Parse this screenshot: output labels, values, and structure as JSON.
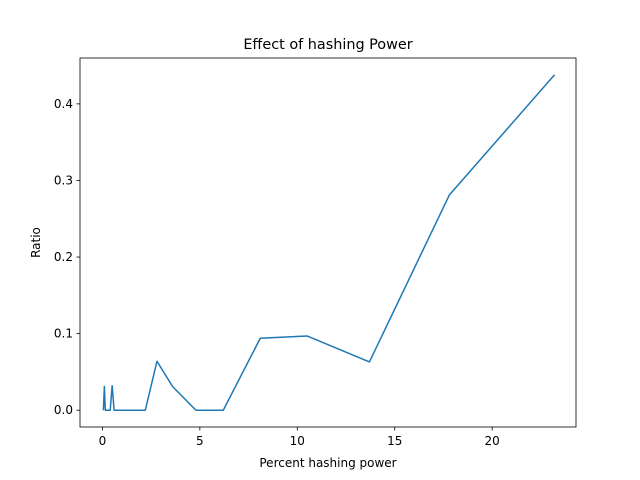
{
  "chart_data": {
    "type": "line",
    "title": "Effect of hashing Power",
    "xlabel": "Percent hashing power",
    "ylabel": "Ratio",
    "xlim": [
      -1.15,
      24.3
    ],
    "ylim": [
      -0.0219,
      0.4599
    ],
    "xticks": [
      0,
      5,
      10,
      15,
      20
    ],
    "yticks": [
      0.0,
      0.1,
      0.2,
      0.3,
      0.4
    ],
    "xtick_labels": [
      "0",
      "5",
      "10",
      "15",
      "20"
    ],
    "ytick_labels": [
      "0.0",
      "0.1",
      "0.2",
      "0.3",
      "0.4"
    ],
    "grid": false,
    "series": [
      {
        "color": "#1f77b4",
        "x": [
          0.05,
          0.1,
          0.15,
          0.4,
          0.5,
          0.6,
          2.2,
          2.8,
          3.6,
          4.8,
          6.2,
          8.1,
          10.5,
          13.7,
          17.8,
          23.2
        ],
        "y": [
          0.0,
          0.031,
          0.0,
          0.0,
          0.032,
          0.0,
          0.0,
          0.064,
          0.031,
          0.0,
          0.0,
          0.094,
          0.097,
          0.063,
          0.281,
          0.438
        ]
      }
    ]
  }
}
